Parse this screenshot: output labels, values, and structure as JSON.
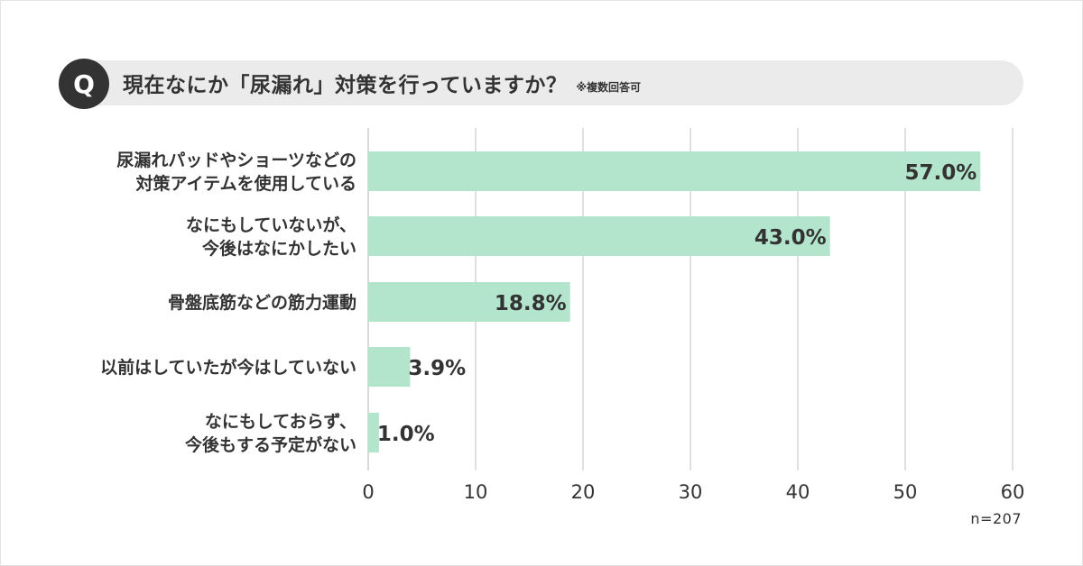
{
  "question": {
    "badge": "Q",
    "text": "現在なにか「尿漏れ」対策を行っていますか？",
    "note": "※複数回答可"
  },
  "sample_size": "n=207",
  "colors": {
    "bar": "#b3e5cd",
    "grid": "#cccccc",
    "text": "#333333",
    "badge": "#333333",
    "pill": "#ebebeb"
  },
  "chart_data": {
    "type": "bar",
    "orientation": "horizontal",
    "categories": [
      [
        "尿漏れパッドやショーツなどの",
        "対策アイテムを使用している"
      ],
      [
        "なにもしていないが、",
        "今後はなにかしたい"
      ],
      [
        "骨盤底筋などの筋力運動"
      ],
      [
        "以前はしていたが今はしていない"
      ],
      [
        "なにもしておらず、",
        "今後もする予定がない"
      ]
    ],
    "values": [
      57.0,
      43.0,
      18.8,
      3.9,
      1.0
    ],
    "value_labels": [
      "57.0%",
      "43.0%",
      "18.8%",
      "3.9%",
      "1.0%"
    ],
    "xlim": [
      0,
      60
    ],
    "xticks": [
      0,
      10,
      20,
      30,
      40,
      50,
      60
    ],
    "grid": true,
    "legend": "none"
  }
}
